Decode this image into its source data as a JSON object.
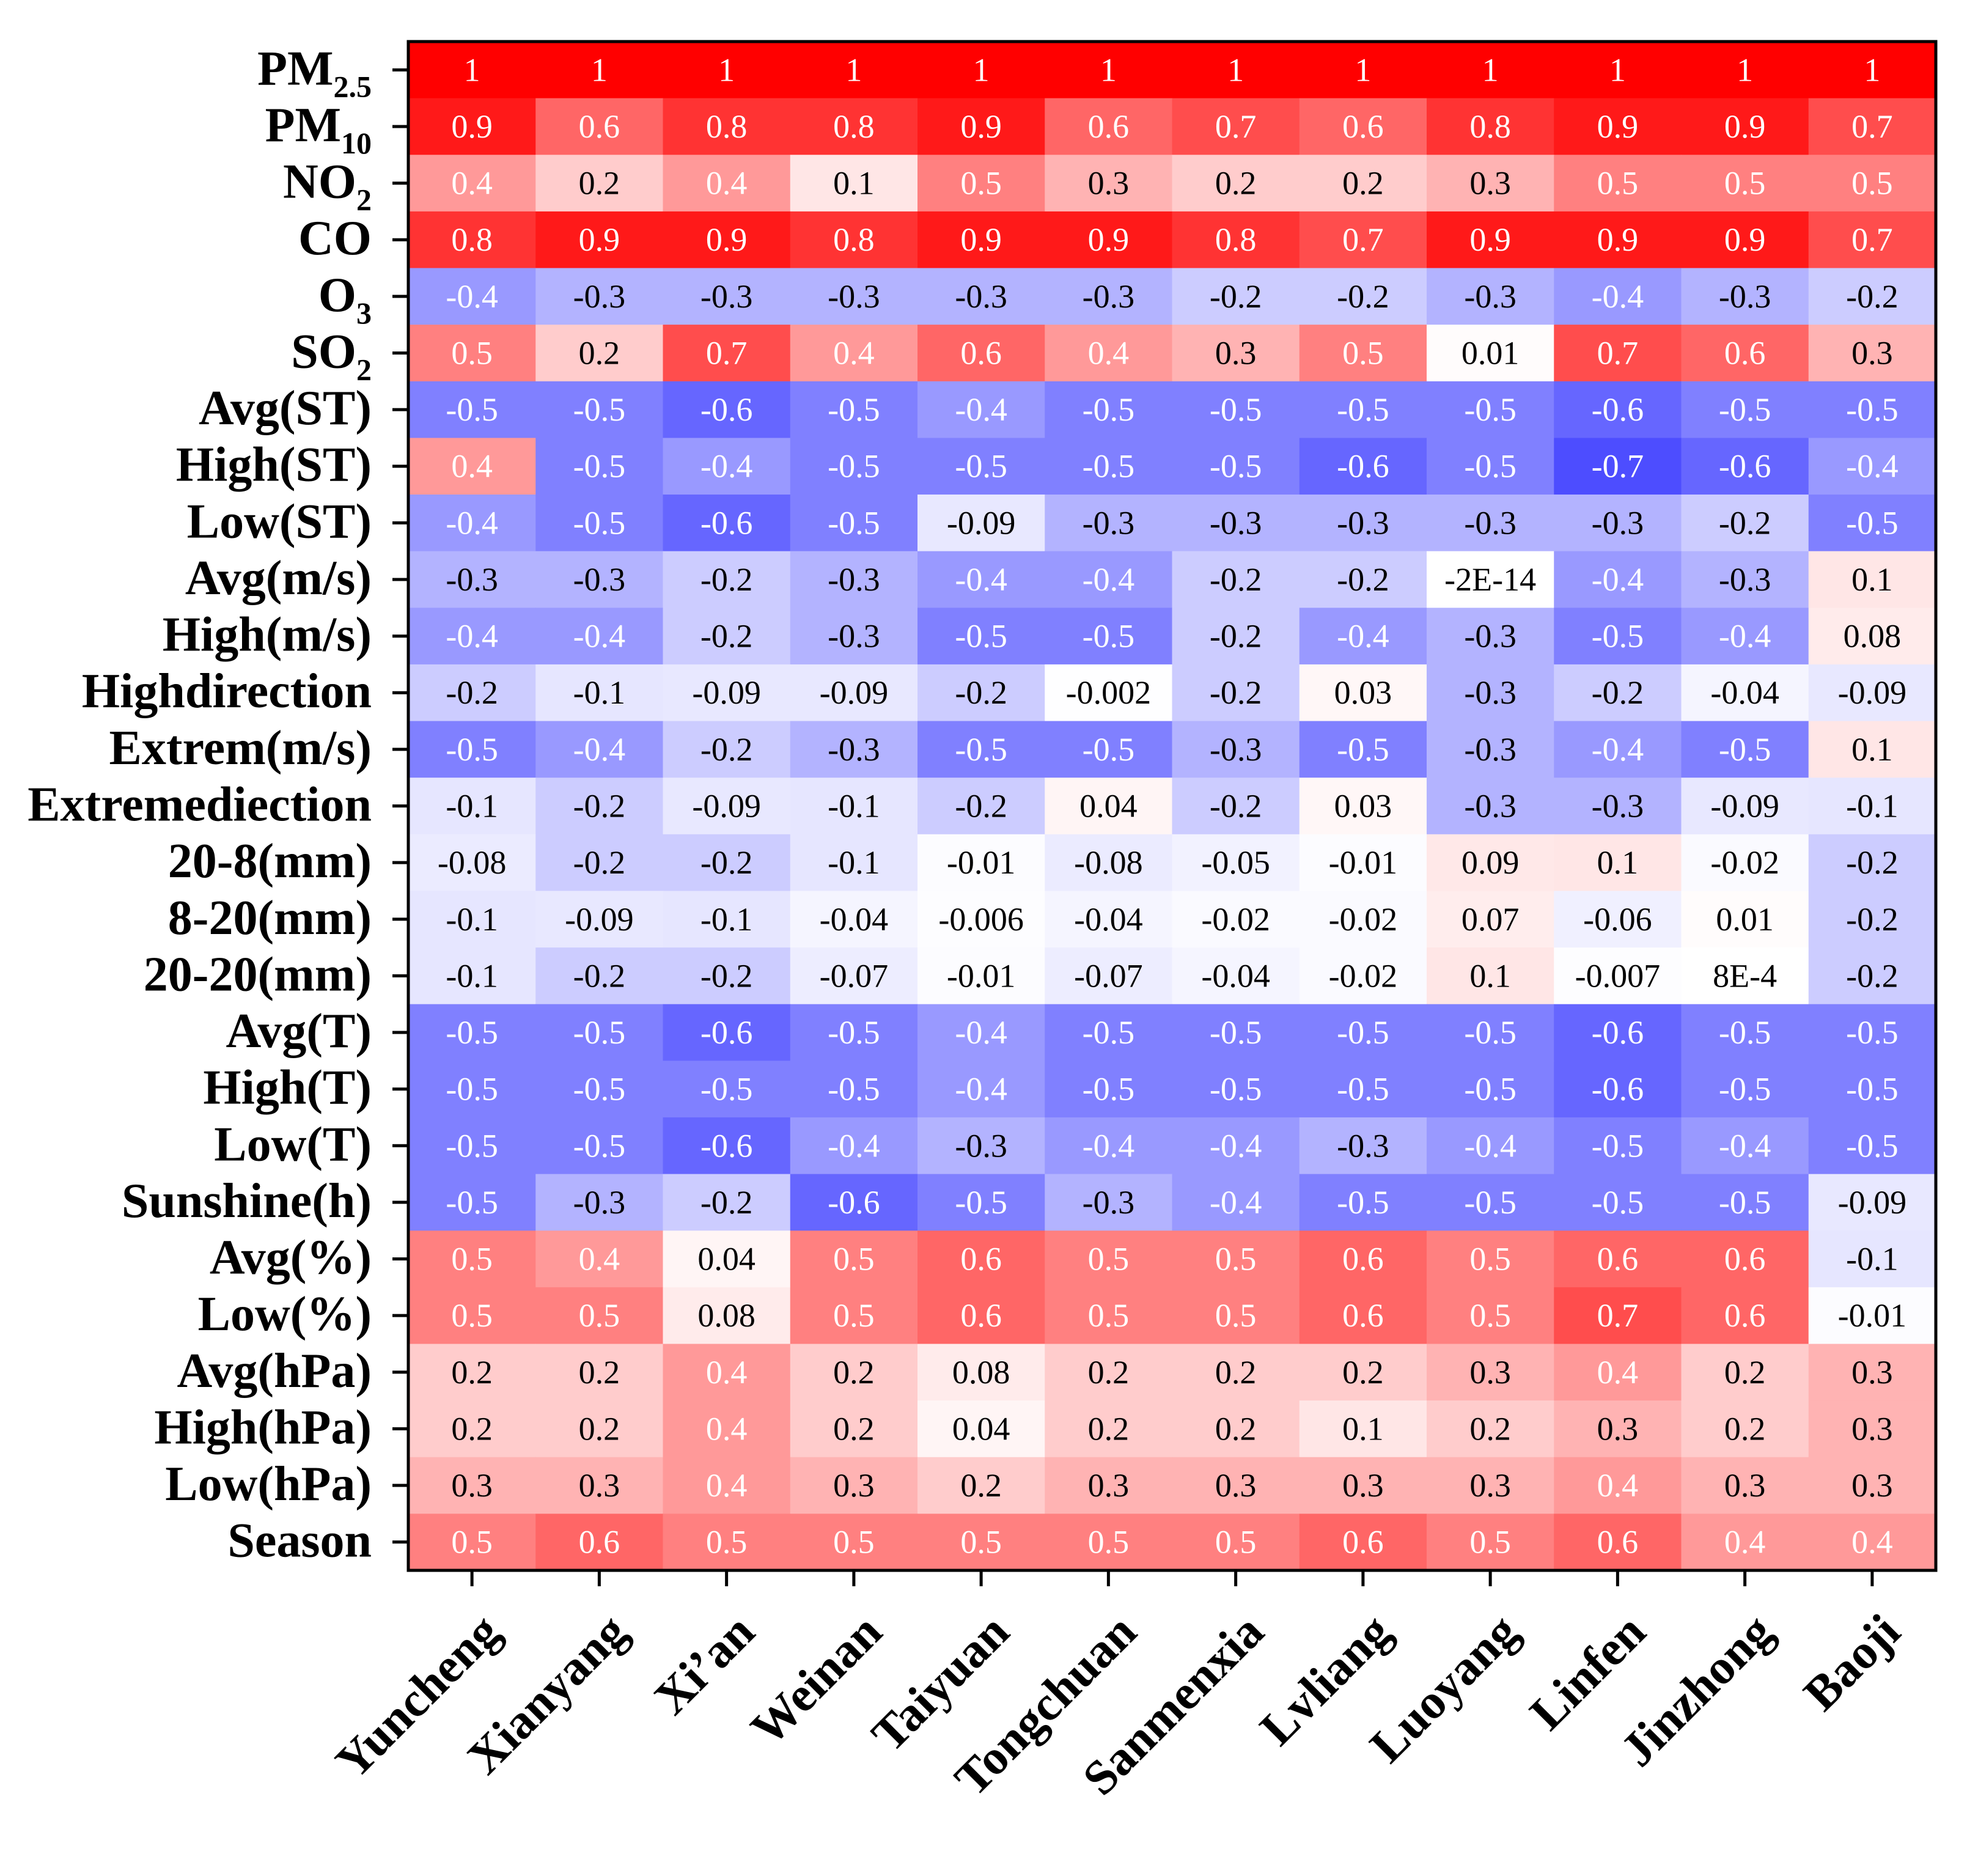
{
  "chart_data": {
    "type": "heatmap",
    "title": "",
    "xlabel": "",
    "ylabel": "",
    "color_scale": {
      "negative": "#0000ff",
      "zero": "#ffffff",
      "positive": "#ff0000",
      "range": [
        -1,
        1
      ]
    },
    "columns": [
      "Yuncheng",
      "Xianyang",
      "Xi’an",
      "Weinan",
      "Taiyuan",
      "Tongchuan",
      "Sanmenxia",
      "Lvliang",
      "Luoyang",
      "Linfen",
      "Jinzhong",
      "Baoji"
    ],
    "rows": [
      {
        "base": "PM",
        "sub": "2.5",
        "label": "PM2.5",
        "values": [
          1,
          1,
          1,
          1,
          1,
          1,
          1,
          1,
          1,
          1,
          1,
          1
        ],
        "labels": [
          "1",
          "1",
          "1",
          "1",
          "1",
          "1",
          "1",
          "1",
          "1",
          "1",
          "1",
          "1"
        ]
      },
      {
        "base": "PM",
        "sub": "10",
        "label": "PM10",
        "values": [
          0.9,
          0.6,
          0.8,
          0.8,
          0.9,
          0.6,
          0.7,
          0.6,
          0.8,
          0.9,
          0.9,
          0.7
        ],
        "labels": [
          "0.9",
          "0.6",
          "0.8",
          "0.8",
          "0.9",
          "0.6",
          "0.7",
          "0.6",
          "0.8",
          "0.9",
          "0.9",
          "0.7"
        ]
      },
      {
        "base": "NO",
        "sub": "2",
        "label": "NO2",
        "values": [
          0.4,
          0.2,
          0.4,
          0.1,
          0.5,
          0.3,
          0.2,
          0.2,
          0.3,
          0.5,
          0.5,
          0.5
        ],
        "labels": [
          "0.4",
          "0.2",
          "0.4",
          "0.1",
          "0.5",
          "0.3",
          "0.2",
          "0.2",
          "0.3",
          "0.5",
          "0.5",
          "0.5"
        ]
      },
      {
        "base": "CO",
        "sub": "",
        "label": "CO",
        "values": [
          0.8,
          0.9,
          0.9,
          0.8,
          0.9,
          0.9,
          0.8,
          0.7,
          0.9,
          0.9,
          0.9,
          0.7
        ],
        "labels": [
          "0.8",
          "0.9",
          "0.9",
          "0.8",
          "0.9",
          "0.9",
          "0.8",
          "0.7",
          "0.9",
          "0.9",
          "0.9",
          "0.7"
        ]
      },
      {
        "base": "O",
        "sub": "3",
        "label": "O3",
        "values": [
          -0.4,
          -0.3,
          -0.3,
          -0.3,
          -0.3,
          -0.3,
          -0.2,
          -0.2,
          -0.3,
          -0.4,
          -0.3,
          -0.2
        ],
        "labels": [
          "-0.4",
          "-0.3",
          "-0.3",
          "-0.3",
          "-0.3",
          "-0.3",
          "-0.2",
          "-0.2",
          "-0.3",
          "-0.4",
          "-0.3",
          "-0.2"
        ]
      },
      {
        "base": "SO",
        "sub": "2",
        "label": "SO2",
        "values": [
          0.5,
          0.2,
          0.7,
          0.4,
          0.6,
          0.4,
          0.3,
          0.5,
          0.01,
          0.7,
          0.6,
          0.3
        ],
        "labels": [
          "0.5",
          "0.2",
          "0.7",
          "0.4",
          "0.6",
          "0.4",
          "0.3",
          "0.5",
          "0.01",
          "0.7",
          "0.6",
          "0.3"
        ]
      },
      {
        "base": "Avg(ST)",
        "sub": "",
        "label": "Avg(ST)",
        "values": [
          -0.5,
          -0.5,
          -0.6,
          -0.5,
          -0.4,
          -0.5,
          -0.5,
          -0.5,
          -0.5,
          -0.6,
          -0.5,
          -0.5
        ],
        "labels": [
          "-0.5",
          "-0.5",
          "-0.6",
          "-0.5",
          "-0.4",
          "-0.5",
          "-0.5",
          "-0.5",
          "-0.5",
          "-0.6",
          "-0.5",
          "-0.5"
        ]
      },
      {
        "base": "High(ST)",
        "sub": "",
        "label": "High(ST)",
        "values": [
          0.4,
          -0.5,
          -0.4,
          -0.5,
          -0.5,
          -0.5,
          -0.5,
          -0.6,
          -0.5,
          -0.7,
          -0.6,
          -0.4
        ],
        "labels": [
          "0.4",
          "-0.5",
          "-0.4",
          "-0.5",
          "-0.5",
          "-0.5",
          "-0.5",
          "-0.6",
          "-0.5",
          "-0.7",
          "-0.6",
          "-0.4"
        ]
      },
      {
        "base": "Low(ST)",
        "sub": "",
        "label": "Low(ST)",
        "values": [
          -0.4,
          -0.5,
          -0.6,
          -0.5,
          -0.09,
          -0.3,
          -0.3,
          -0.3,
          -0.3,
          -0.3,
          -0.2,
          -0.5
        ],
        "labels": [
          "-0.4",
          "-0.5",
          "-0.6",
          "-0.5",
          "-0.09",
          "-0.3",
          "-0.3",
          "-0.3",
          "-0.3",
          "-0.3",
          "-0.2",
          "-0.5"
        ]
      },
      {
        "base": "Avg(m/s)",
        "sub": "",
        "label": "Avg(m/s)",
        "values": [
          -0.3,
          -0.3,
          -0.2,
          -0.3,
          -0.4,
          -0.4,
          -0.2,
          -0.2,
          -2e-14,
          -0.4,
          -0.3,
          0.1
        ],
        "labels": [
          "-0.3",
          "-0.3",
          "-0.2",
          "-0.3",
          "-0.4",
          "-0.4",
          "-0.2",
          "-0.2",
          "-2E-14",
          "-0.4",
          "-0.3",
          "0.1"
        ]
      },
      {
        "base": "High(m/s)",
        "sub": "",
        "label": "High(m/s)",
        "values": [
          -0.4,
          -0.4,
          -0.2,
          -0.3,
          -0.5,
          -0.5,
          -0.2,
          -0.4,
          -0.3,
          -0.5,
          -0.4,
          0.08
        ],
        "labels": [
          "-0.4",
          "-0.4",
          "-0.2",
          "-0.3",
          "-0.5",
          "-0.5",
          "-0.2",
          "-0.4",
          "-0.3",
          "-0.5",
          "-0.4",
          "0.08"
        ]
      },
      {
        "base": "Highdirection",
        "sub": "",
        "label": "Highdirection",
        "values": [
          -0.2,
          -0.1,
          -0.09,
          -0.09,
          -0.2,
          -0.002,
          -0.2,
          0.03,
          -0.3,
          -0.2,
          -0.04,
          -0.09
        ],
        "labels": [
          "-0.2",
          "-0.1",
          "-0.09",
          "-0.09",
          "-0.2",
          "-0.002",
          "-0.2",
          "0.03",
          "-0.3",
          "-0.2",
          "-0.04",
          "-0.09"
        ]
      },
      {
        "base": "Extrem(m/s)",
        "sub": "",
        "label": "Extrem(m/s)",
        "values": [
          -0.5,
          -0.4,
          -0.2,
          -0.3,
          -0.5,
          -0.5,
          -0.3,
          -0.5,
          -0.3,
          -0.4,
          -0.5,
          0.1
        ],
        "labels": [
          "-0.5",
          "-0.4",
          "-0.2",
          "-0.3",
          "-0.5",
          "-0.5",
          "-0.3",
          "-0.5",
          "-0.3",
          "-0.4",
          "-0.5",
          "0.1"
        ]
      },
      {
        "base": "Extremediection",
        "sub": "",
        "label": "Extremediection",
        "values": [
          -0.1,
          -0.2,
          -0.09,
          -0.1,
          -0.2,
          0.04,
          -0.2,
          0.03,
          -0.3,
          -0.3,
          -0.09,
          -0.1
        ],
        "labels": [
          "-0.1",
          "-0.2",
          "-0.09",
          "-0.1",
          "-0.2",
          "0.04",
          "-0.2",
          "0.03",
          "-0.3",
          "-0.3",
          "-0.09",
          "-0.1"
        ]
      },
      {
        "base": "20-8(mm)",
        "sub": "",
        "label": "20-8(mm)",
        "values": [
          -0.08,
          -0.2,
          -0.2,
          -0.1,
          -0.01,
          -0.08,
          -0.05,
          -0.01,
          0.09,
          0.1,
          -0.02,
          -0.2
        ],
        "labels": [
          "-0.08",
          "-0.2",
          "-0.2",
          "-0.1",
          "-0.01",
          "-0.08",
          "-0.05",
          "-0.01",
          "0.09",
          "0.1",
          "-0.02",
          "-0.2"
        ]
      },
      {
        "base": "8-20(mm)",
        "sub": "",
        "label": "8-20(mm)",
        "values": [
          -0.1,
          -0.09,
          -0.1,
          -0.04,
          -0.006,
          -0.04,
          -0.02,
          -0.02,
          0.07,
          -0.06,
          0.01,
          -0.2
        ],
        "labels": [
          "-0.1",
          "-0.09",
          "-0.1",
          "-0.04",
          "-0.006",
          "-0.04",
          "-0.02",
          "-0.02",
          "0.07",
          "-0.06",
          "0.01",
          "-0.2"
        ]
      },
      {
        "base": "20-20(mm)",
        "sub": "",
        "label": "20-20(mm)",
        "values": [
          -0.1,
          -0.2,
          -0.2,
          -0.07,
          -0.01,
          -0.07,
          -0.04,
          -0.02,
          0.1,
          -0.007,
          0.0008,
          -0.2
        ],
        "labels": [
          "-0.1",
          "-0.2",
          "-0.2",
          "-0.07",
          "-0.01",
          "-0.07",
          "-0.04",
          "-0.02",
          "0.1",
          "-0.007",
          "8E-4",
          "-0.2"
        ]
      },
      {
        "base": "Avg(T)",
        "sub": "",
        "label": "Avg(T)",
        "values": [
          -0.5,
          -0.5,
          -0.6,
          -0.5,
          -0.4,
          -0.5,
          -0.5,
          -0.5,
          -0.5,
          -0.6,
          -0.5,
          -0.5
        ],
        "labels": [
          "-0.5",
          "-0.5",
          "-0.6",
          "-0.5",
          "-0.4",
          "-0.5",
          "-0.5",
          "-0.5",
          "-0.5",
          "-0.6",
          "-0.5",
          "-0.5"
        ]
      },
      {
        "base": "High(T)",
        "sub": "",
        "label": "High(T)",
        "values": [
          -0.5,
          -0.5,
          -0.5,
          -0.5,
          -0.4,
          -0.5,
          -0.5,
          -0.5,
          -0.5,
          -0.6,
          -0.5,
          -0.5
        ],
        "labels": [
          "-0.5",
          "-0.5",
          "-0.5",
          "-0.5",
          "-0.4",
          "-0.5",
          "-0.5",
          "-0.5",
          "-0.5",
          "-0.6",
          "-0.5",
          "-0.5"
        ]
      },
      {
        "base": "Low(T)",
        "sub": "",
        "label": "Low(T)",
        "values": [
          -0.5,
          -0.5,
          -0.6,
          -0.4,
          -0.3,
          -0.4,
          -0.4,
          -0.3,
          -0.4,
          -0.5,
          -0.4,
          -0.5
        ],
        "labels": [
          "-0.5",
          "-0.5",
          "-0.6",
          "-0.4",
          "-0.3",
          "-0.4",
          "-0.4",
          "-0.3",
          "-0.4",
          "-0.5",
          "-0.4",
          "-0.5"
        ]
      },
      {
        "base": "Sunshine(h)",
        "sub": "",
        "label": "Sunshine(h)",
        "values": [
          -0.5,
          -0.3,
          -0.2,
          -0.6,
          -0.5,
          -0.3,
          -0.4,
          -0.5,
          -0.5,
          -0.5,
          -0.5,
          -0.09
        ],
        "labels": [
          "-0.5",
          "-0.3",
          "-0.2",
          "-0.6",
          "-0.5",
          "-0.3",
          "-0.4",
          "-0.5",
          "-0.5",
          "-0.5",
          "-0.5",
          "-0.09"
        ]
      },
      {
        "base": "Avg(%)",
        "sub": "",
        "label": "Avg(%)",
        "values": [
          0.5,
          0.4,
          0.04,
          0.5,
          0.6,
          0.5,
          0.5,
          0.6,
          0.5,
          0.6,
          0.6,
          -0.1
        ],
        "labels": [
          "0.5",
          "0.4",
          "0.04",
          "0.5",
          "0.6",
          "0.5",
          "0.5",
          "0.6",
          "0.5",
          "0.6",
          "0.6",
          "-0.1"
        ]
      },
      {
        "base": "Low(%)",
        "sub": "",
        "label": "Low(%)",
        "values": [
          0.5,
          0.5,
          0.08,
          0.5,
          0.6,
          0.5,
          0.5,
          0.6,
          0.5,
          0.7,
          0.6,
          -0.01
        ],
        "labels": [
          "0.5",
          "0.5",
          "0.08",
          "0.5",
          "0.6",
          "0.5",
          "0.5",
          "0.6",
          "0.5",
          "0.7",
          "0.6",
          "-0.01"
        ]
      },
      {
        "base": "Avg(hPa)",
        "sub": "",
        "label": "Avg(hPa)",
        "values": [
          0.2,
          0.2,
          0.4,
          0.2,
          0.08,
          0.2,
          0.2,
          0.2,
          0.3,
          0.4,
          0.2,
          0.3
        ],
        "labels": [
          "0.2",
          "0.2",
          "0.4",
          "0.2",
          "0.08",
          "0.2",
          "0.2",
          "0.2",
          "0.3",
          "0.4",
          "0.2",
          "0.3"
        ]
      },
      {
        "base": "High(hPa)",
        "sub": "",
        "label": "High(hPa)",
        "values": [
          0.2,
          0.2,
          0.4,
          0.2,
          0.04,
          0.2,
          0.2,
          0.1,
          0.2,
          0.3,
          0.2,
          0.3
        ],
        "labels": [
          "0.2",
          "0.2",
          "0.4",
          "0.2",
          "0.04",
          "0.2",
          "0.2",
          "0.1",
          "0.2",
          "0.3",
          "0.2",
          "0.3"
        ]
      },
      {
        "base": "Low(hPa)",
        "sub": "",
        "label": "Low(hPa)",
        "values": [
          0.3,
          0.3,
          0.4,
          0.3,
          0.2,
          0.3,
          0.3,
          0.3,
          0.3,
          0.4,
          0.3,
          0.3
        ],
        "labels": [
          "0.3",
          "0.3",
          "0.4",
          "0.3",
          "0.2",
          "0.3",
          "0.3",
          "0.3",
          "0.3",
          "0.4",
          "0.3",
          "0.3"
        ]
      },
      {
        "base": "Season",
        "sub": "",
        "label": "Season",
        "values": [
          0.5,
          0.6,
          0.5,
          0.5,
          0.5,
          0.5,
          0.5,
          0.6,
          0.5,
          0.6,
          0.4,
          0.4
        ],
        "labels": [
          "0.5",
          "0.6",
          "0.5",
          "0.5",
          "0.5",
          "0.5",
          "0.5",
          "0.6",
          "0.5",
          "0.6",
          "0.4",
          "0.4"
        ]
      }
    ]
  }
}
